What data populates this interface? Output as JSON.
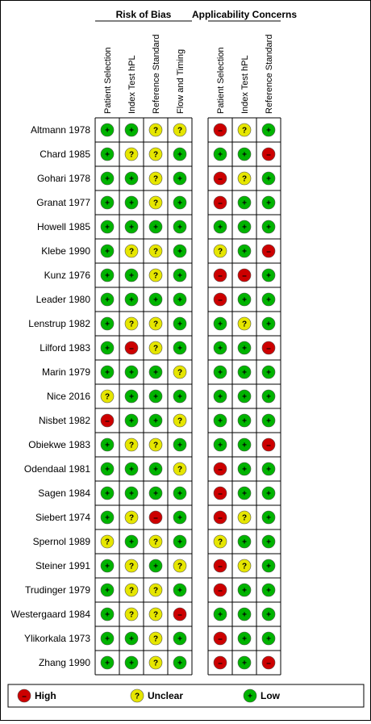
{
  "chart_data": {
    "type": "table",
    "groups": [
      {
        "name": "Risk of Bias",
        "domains": [
          "Patient Selection",
          "Index Test hPL",
          "Reference Standard",
          "Flow and Timing"
        ]
      },
      {
        "name": "Applicability Concerns",
        "domains": [
          "Patient Selection",
          "Index Test hPL",
          "Reference Standard"
        ]
      }
    ],
    "studies": [
      "Altmann 1978",
      "Chard 1985",
      "Gohari 1978",
      "Granat 1977",
      "Howell 1985",
      "Klebe 1990",
      "Kunz 1976",
      "Leader 1980",
      "Lenstrup 1982",
      "Lilford 1983",
      "Marin 1979",
      "Nice 2016",
      "Nisbet 1982",
      "Obiekwe 1983",
      "Odendaal 1981",
      "Sagen 1984",
      "Siebert 1974",
      "Spernol 1989",
      "Steiner 1991",
      "Trudinger 1979",
      "Westergaard 1984",
      "Ylikorkala 1973",
      "Zhang 1990"
    ],
    "ratings": [
      [
        "L",
        "L",
        "U",
        "U",
        "H",
        "U",
        "L"
      ],
      [
        "L",
        "U",
        "U",
        "L",
        "L",
        "L",
        "H"
      ],
      [
        "L",
        "L",
        "U",
        "L",
        "H",
        "U",
        "L"
      ],
      [
        "L",
        "L",
        "U",
        "L",
        "H",
        "L",
        "L"
      ],
      [
        "L",
        "L",
        "L",
        "L",
        "L",
        "L",
        "L"
      ],
      [
        "L",
        "U",
        "U",
        "L",
        "U",
        "L",
        "H"
      ],
      [
        "L",
        "L",
        "U",
        "L",
        "H",
        "H",
        "L"
      ],
      [
        "L",
        "L",
        "L",
        "L",
        "H",
        "L",
        "L"
      ],
      [
        "L",
        "U",
        "U",
        "L",
        "L",
        "U",
        "L"
      ],
      [
        "L",
        "H",
        "U",
        "L",
        "L",
        "L",
        "H"
      ],
      [
        "L",
        "L",
        "L",
        "U",
        "L",
        "L",
        "L"
      ],
      [
        "U",
        "L",
        "L",
        "L",
        "L",
        "L",
        "L"
      ],
      [
        "H",
        "L",
        "L",
        "U",
        "L",
        "L",
        "L"
      ],
      [
        "L",
        "U",
        "U",
        "L",
        "L",
        "L",
        "H"
      ],
      [
        "L",
        "L",
        "L",
        "U",
        "H",
        "L",
        "L"
      ],
      [
        "L",
        "L",
        "L",
        "L",
        "H",
        "L",
        "L"
      ],
      [
        "L",
        "U",
        "H",
        "L",
        "H",
        "U",
        "L"
      ],
      [
        "U",
        "L",
        "U",
        "L",
        "U",
        "L",
        "L"
      ],
      [
        "L",
        "U",
        "L",
        "U",
        "H",
        "U",
        "L"
      ],
      [
        "L",
        "U",
        "U",
        "L",
        "H",
        "L",
        "L"
      ],
      [
        "L",
        "U",
        "U",
        "H",
        "L",
        "L",
        "L"
      ],
      [
        "L",
        "L",
        "U",
        "L",
        "H",
        "L",
        "L"
      ],
      [
        "L",
        "L",
        "U",
        "L",
        "H",
        "L",
        "H"
      ]
    ],
    "legend": [
      {
        "key": "H",
        "label": "High",
        "color": "#cc0000",
        "glyph": "–"
      },
      {
        "key": "U",
        "label": "Unclear",
        "color": "#e6e600",
        "glyph": "?"
      },
      {
        "key": "L",
        "label": "Low",
        "color": "#00b300",
        "glyph": "+"
      }
    ]
  }
}
